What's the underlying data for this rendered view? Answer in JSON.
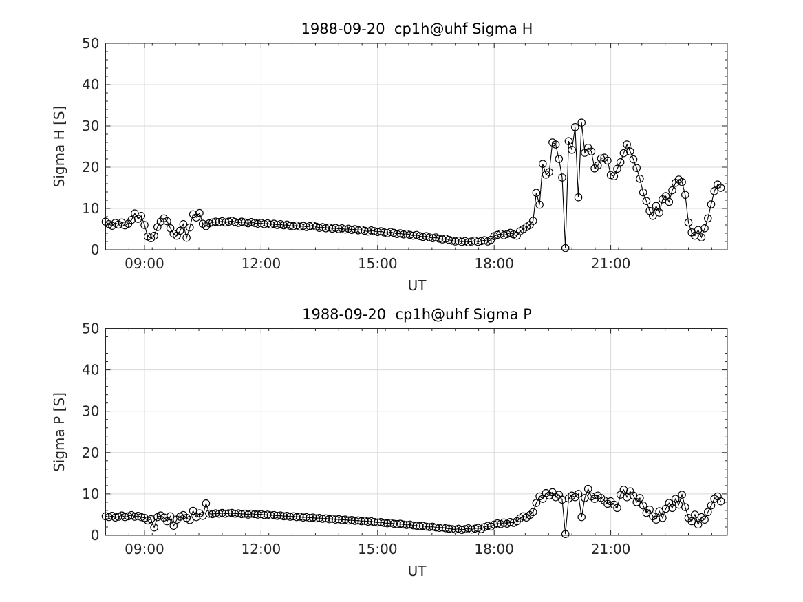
{
  "page": {
    "background": "#ffffff"
  },
  "style": {
    "axis_color": "#262626",
    "grid_color": "#d9d9d9",
    "data_color": "#000000",
    "tick_label_color": "#262626"
  },
  "chart_data": [
    {
      "type": "line",
      "title": "1988-09-20  cp1h@uhf Sigma H",
      "xlabel": "UT",
      "ylabel": "Sigma H [S]",
      "xlim_hours": [
        8,
        24
      ],
      "ylim": [
        0,
        50
      ],
      "xticks": [
        {
          "hours": 9,
          "label": "09:00"
        },
        {
          "hours": 12,
          "label": "12:00"
        },
        {
          "hours": 15,
          "label": "15:00"
        },
        {
          "hours": 18,
          "label": "18:00"
        },
        {
          "hours": 21,
          "label": "21:00"
        }
      ],
      "yticks": [
        0,
        10,
        20,
        30,
        40,
        50
      ],
      "minor_x_step_hours": 0.6,
      "minor_y_step": 2,
      "grid": "major",
      "marker": "open-circle",
      "series": [
        {
          "name": "Sigma H",
          "t0_hours": 8.0,
          "dt_minutes": 5,
          "values": [
            6.8,
            6.2,
            5.8,
            6.5,
            6.1,
            6.6,
            5.9,
            6.3,
            7.2,
            8.8,
            7.5,
            8.2,
            6.0,
            3.2,
            2.8,
            3.4,
            5.5,
            6.8,
            7.6,
            6.9,
            5.2,
            3.9,
            3.4,
            4.6,
            6.2,
            2.9,
            5.4,
            8.6,
            7.8,
            8.9,
            6.3,
            5.7,
            6.4,
            6.6,
            6.8,
            6.7,
            6.9,
            6.6,
            6.8,
            7.0,
            6.7,
            6.5,
            6.8,
            6.6,
            6.4,
            6.7,
            6.5,
            6.3,
            6.5,
            6.2,
            6.4,
            6.1,
            6.3,
            6.0,
            6.2,
            5.9,
            6.1,
            5.8,
            5.7,
            5.9,
            5.6,
            5.8,
            5.5,
            5.7,
            5.9,
            5.6,
            5.3,
            5.5,
            5.2,
            5.4,
            5.1,
            5.3,
            5.0,
            5.2,
            4.9,
            5.1,
            4.8,
            5.0,
            4.7,
            4.9,
            4.6,
            4.4,
            4.7,
            4.5,
            4.3,
            4.5,
            4.2,
            4.0,
            4.3,
            4.1,
            3.8,
            4.0,
            3.7,
            3.9,
            3.6,
            3.4,
            3.6,
            3.3,
            3.1,
            3.3,
            3.0,
            2.8,
            3.0,
            2.7,
            2.5,
            2.7,
            2.4,
            2.2,
            2.0,
            2.2,
            1.9,
            2.1,
            1.8,
            2.0,
            2.2,
            1.9,
            2.1,
            2.3,
            2.0,
            2.4,
            3.3,
            3.6,
            3.9,
            3.5,
            3.8,
            4.1,
            3.7,
            3.4,
            4.5,
            5.0,
            5.5,
            6.0,
            7.0,
            13.8,
            10.9,
            20.8,
            18.2,
            18.8,
            26.0,
            25.5,
            22.0,
            17.5,
            0.4,
            26.3,
            24.2,
            29.7,
            12.7,
            30.8,
            23.5,
            24.7,
            23.8,
            19.7,
            20.4,
            22.1,
            22.3,
            21.6,
            18.1,
            17.8,
            19.6,
            21.2,
            23.4,
            25.5,
            23.8,
            21.9,
            19.8,
            17.2,
            13.9,
            11.8,
            9.4,
            8.2,
            10.6,
            9.0,
            12.2,
            13.0,
            11.6,
            14.4,
            16.2,
            17.0,
            16.4,
            13.3,
            6.6,
            4.2,
            3.4,
            4.8,
            3.0,
            5.2,
            7.6,
            11.0,
            14.2,
            15.8,
            15.0
          ]
        }
      ]
    },
    {
      "type": "line",
      "title": "1988-09-20  cp1h@uhf Sigma P",
      "xlabel": "UT",
      "ylabel": "Sigma P [S]",
      "xlim_hours": [
        8,
        24
      ],
      "ylim": [
        0,
        50
      ],
      "xticks": [
        {
          "hours": 9,
          "label": "09:00"
        },
        {
          "hours": 12,
          "label": "12:00"
        },
        {
          "hours": 15,
          "label": "15:00"
        },
        {
          "hours": 18,
          "label": "18:00"
        },
        {
          "hours": 21,
          "label": "21:00"
        }
      ],
      "yticks": [
        0,
        10,
        20,
        30,
        40,
        50
      ],
      "minor_x_step_hours": 0.6,
      "minor_y_step": 2,
      "grid": "major",
      "marker": "open-circle",
      "series": [
        {
          "name": "Sigma P",
          "t0_hours": 8.0,
          "dt_minutes": 5,
          "values": [
            4.6,
            4.4,
            4.7,
            4.3,
            4.5,
            4.8,
            4.4,
            4.6,
            4.9,
            4.5,
            4.7,
            4.4,
            4.2,
            3.6,
            3.9,
            1.9,
            4.4,
            4.8,
            4.3,
            3.4,
            4.6,
            2.3,
            3.8,
            4.5,
            4.9,
            4.2,
            3.7,
            5.9,
            4.4,
            5.3,
            4.7,
            7.7,
            5.2,
            5.1,
            5.3,
            5.2,
            5.4,
            5.2,
            5.3,
            5.4,
            5.2,
            5.3,
            5.1,
            5.2,
            5.0,
            5.2,
            5.1,
            5.0,
            5.1,
            4.9,
            5.0,
            4.8,
            4.9,
            4.7,
            4.8,
            4.6,
            4.7,
            4.5,
            4.6,
            4.4,
            4.5,
            4.3,
            4.4,
            4.2,
            4.3,
            4.1,
            4.2,
            4.0,
            4.1,
            3.9,
            4.0,
            3.8,
            3.9,
            3.7,
            3.8,
            3.6,
            3.7,
            3.5,
            3.6,
            3.4,
            3.5,
            3.3,
            3.4,
            3.2,
            3.1,
            3.2,
            3.0,
            2.9,
            3.0,
            2.8,
            2.7,
            2.8,
            2.6,
            2.5,
            2.6,
            2.4,
            2.3,
            2.2,
            2.3,
            2.1,
            2.0,
            2.1,
            1.9,
            1.8,
            1.9,
            1.7,
            1.6,
            1.5,
            1.4,
            1.6,
            1.3,
            1.5,
            1.7,
            1.4,
            1.6,
            1.8,
            1.5,
            2.0,
            2.3,
            2.1,
            2.6,
            2.9,
            2.7,
            3.1,
            2.8,
            3.2,
            3.0,
            3.4,
            4.1,
            4.6,
            4.3,
            4.9,
            5.6,
            7.8,
            9.4,
            8.8,
            10.2,
            9.6,
            10.4,
            9.2,
            9.8,
            8.6,
            0.3,
            8.9,
            9.6,
            9.2,
            10.0,
            4.4,
            9.0,
            11.2,
            9.4,
            8.8,
            9.6,
            9.0,
            8.4,
            7.6,
            8.2,
            7.4,
            6.6,
            9.8,
            11.0,
            9.2,
            10.6,
            9.6,
            8.0,
            9.0,
            7.2,
            5.4,
            6.2,
            4.6,
            3.8,
            5.8,
            4.2,
            6.4,
            7.8,
            6.6,
            8.8,
            7.4,
            9.8,
            6.8,
            4.2,
            3.4,
            5.0,
            2.6,
            4.4,
            3.8,
            5.6,
            7.2,
            8.8,
            9.4,
            8.2
          ]
        }
      ]
    }
  ]
}
